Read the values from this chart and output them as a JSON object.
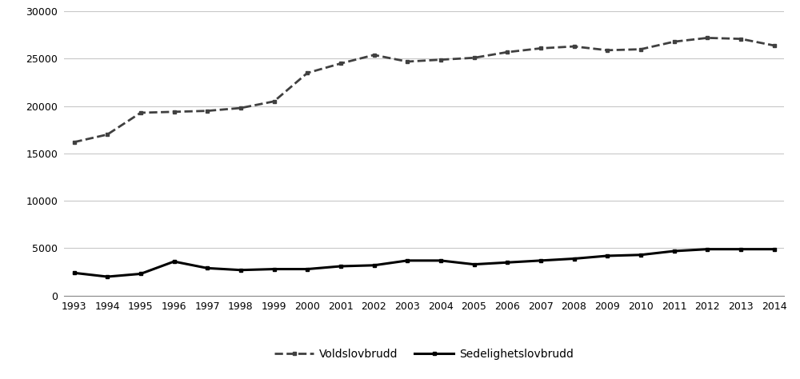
{
  "years": [
    1993,
    1994,
    1995,
    1996,
    1997,
    1998,
    1999,
    2000,
    2001,
    2002,
    2003,
    2004,
    2005,
    2006,
    2007,
    2008,
    2009,
    2010,
    2011,
    2012,
    2013,
    2014
  ],
  "voldslovbrudd": [
    16200,
    17000,
    19300,
    19400,
    19500,
    19800,
    20500,
    23500,
    24500,
    25400,
    24700,
    24900,
    25100,
    25700,
    26100,
    26300,
    25900,
    26000,
    26800,
    27200,
    27100,
    26400
  ],
  "sedelighetslovbrudd": [
    2400,
    2000,
    2300,
    3600,
    2900,
    2700,
    2800,
    2800,
    3100,
    3200,
    3700,
    3700,
    3300,
    3500,
    3700,
    3900,
    4200,
    4300,
    4700,
    4900,
    4900,
    4900
  ],
  "voldslovbrudd_label": "Voldslovbrudd",
  "sedelighetslovbrudd_label": "Sedelighetslovbrudd",
  "ylim": [
    0,
    30000
  ],
  "yticks": [
    0,
    5000,
    10000,
    15000,
    20000,
    25000,
    30000
  ],
  "ytick_labels": [
    "0",
    "5000",
    "10000",
    "15000",
    "20000",
    "25000",
    "30000"
  ],
  "background_color": "#ffffff",
  "line_color_volds": "#404040",
  "line_color_sedelig": "#000000",
  "grid_color": "#c8c8c8"
}
